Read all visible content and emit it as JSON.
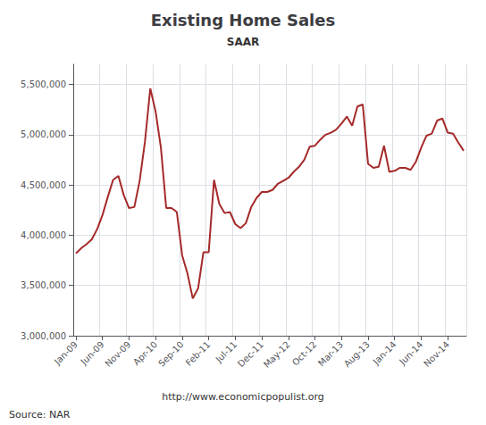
{
  "chart_data": {
    "type": "line",
    "title": "Existing Home Sales",
    "subtitle": "SAAR",
    "annotations": [
      "http://www.economicpopulist.org",
      "Source: NAR"
    ],
    "categories": [
      "Jan-09",
      null,
      null,
      null,
      null,
      "Jun-09",
      null,
      null,
      null,
      null,
      "Nov-09",
      null,
      null,
      null,
      null,
      "Apr-10",
      null,
      null,
      null,
      null,
      "Sep-10",
      null,
      null,
      null,
      null,
      "Feb-11",
      null,
      null,
      null,
      null,
      "Jul-11",
      null,
      null,
      null,
      null,
      "Dec-11",
      null,
      null,
      null,
      null,
      "May-12",
      null,
      null,
      null,
      null,
      "Oct-12",
      null,
      null,
      null,
      null,
      "Mar-13",
      null,
      null,
      null,
      null,
      "Aug-13",
      null,
      null,
      null,
      null,
      "Jan-14",
      null,
      null,
      null,
      null,
      "Jun-14",
      null,
      null,
      null,
      null,
      "Nov-14",
      null,
      null,
      null
    ],
    "values": [
      3820000,
      3870000,
      3910000,
      3960000,
      4060000,
      4200000,
      4380000,
      4550000,
      4590000,
      4400000,
      4270000,
      4280000,
      4540000,
      4930000,
      5460000,
      5230000,
      4870000,
      4270000,
      4270000,
      4230000,
      3800000,
      3620000,
      3370000,
      3470000,
      3830000,
      3830000,
      4550000,
      4310000,
      4220000,
      4230000,
      4110000,
      4070000,
      4120000,
      4280000,
      4370000,
      4430000,
      4430000,
      4450000,
      4510000,
      4540000,
      4570000,
      4630000,
      4680000,
      4750000,
      4880000,
      4890000,
      4950000,
      5000000,
      5020000,
      5050000,
      5110000,
      5180000,
      5090000,
      5280000,
      5300000,
      4710000,
      4670000,
      4680000,
      4890000,
      4630000,
      4640000,
      4670000,
      4670000,
      4650000,
      4730000,
      4870000,
      4990000,
      5010000,
      5140000,
      5160000,
      5020000,
      5010000,
      4920000,
      4840000
    ],
    "color": "#a52a2a",
    "ylim": [
      3000000,
      5700000
    ],
    "yticks": [
      {
        "value": 3000000,
        "label": "3,000,000"
      },
      {
        "value": 3500000,
        "label": "3,500,000"
      },
      {
        "value": 4000000,
        "label": "4,000,000"
      },
      {
        "value": 4500000,
        "label": "4,500,000"
      },
      {
        "value": 5000000,
        "label": "5,000,000"
      },
      {
        "value": 5500000,
        "label": "5,500,000"
      }
    ],
    "grid": true
  }
}
